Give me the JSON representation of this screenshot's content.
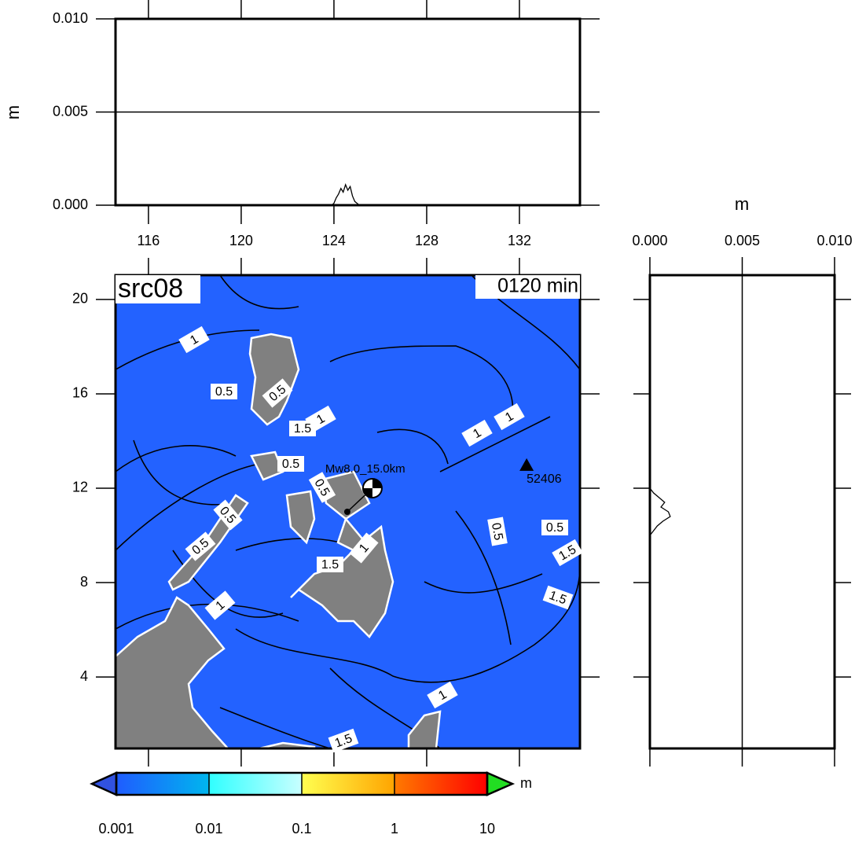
{
  "chart_data": [
    {
      "type": "line",
      "ylabel": "m",
      "xlim": [
        114.58,
        134.61
      ],
      "xticks": [
        116,
        120,
        124,
        128,
        132
      ],
      "ylim": [
        0,
        0.01
      ],
      "yticks": [
        {
          "value": 0,
          "label": "0.000"
        },
        {
          "value": 0.005,
          "label": "0.005"
        },
        {
          "value": 0.01,
          "label": "0.010"
        }
      ],
      "grid": true,
      "series": [
        {
          "color": "#000000",
          "x": [
            123.9,
            124.0,
            124.1,
            124.2,
            124.3,
            124.4,
            124.5,
            124.6,
            124.7,
            124.8,
            124.9,
            125.0,
            125.1
          ],
          "values": [
            0,
            0.0001,
            0.0004,
            0.0006,
            0.0009,
            0.0007,
            0.0011,
            0.0008,
            0.001,
            0.0005,
            0.0002,
            0.0001,
            0
          ]
        }
      ]
    },
    {
      "type": "map",
      "title": "src08",
      "subtitle": "0120 min",
      "xlim": [
        114.58,
        134.61
      ],
      "xticks": [
        116,
        120,
        124,
        128,
        132
      ],
      "ylim": [
        0.97,
        21.03
      ],
      "yticks": [
        4,
        8,
        12,
        16,
        20
      ],
      "sea_color": "#2362ff",
      "land_color": "#808080",
      "contour_labels": [
        "1",
        "0.5",
        "0.5",
        "1",
        "1.5",
        "0.5",
        "0.5",
        "1",
        "1",
        "0.5",
        "0.5",
        "1.5",
        "1.5",
        "0.5",
        "0.5",
        "1.5",
        "1",
        "1",
        "1",
        "1.5"
      ],
      "epicenter": {
        "label": "Mw8.0_15.0km",
        "lon": 125.66,
        "lat": 12.0
      },
      "station": {
        "label": "52406",
        "lon": 132.31,
        "lat": 12.97
      }
    },
    {
      "type": "line",
      "orientation": "horizontal",
      "xlabel": "m",
      "xlim": [
        0,
        0.01
      ],
      "xticks": [
        {
          "value": 0,
          "label": "0.000"
        },
        {
          "value": 0.005,
          "label": "0.005"
        },
        {
          "value": 0.01,
          "label": "0.010"
        }
      ],
      "ylim": [
        0.97,
        21.03
      ],
      "yticks": [
        4,
        8,
        12,
        16,
        20
      ],
      "grid": true,
      "series": [
        {
          "color": "#000000",
          "y": [
            12.0,
            11.8,
            11.6,
            11.4,
            11.2,
            11.0,
            10.8,
            10.6,
            10.4,
            10.2,
            10.0
          ],
          "values": [
            0,
            0.0002,
            0.0005,
            0.0008,
            0.0006,
            0.001,
            0.0011,
            0.0007,
            0.0004,
            0.0002,
            0
          ]
        }
      ]
    },
    {
      "type": "colorbar",
      "unit": "m",
      "scale": "log",
      "lim": [
        0.001,
        10
      ],
      "ticks": [
        0.001,
        0.01,
        0.1,
        1,
        10
      ],
      "segment_colors": [
        [
          "#1f5cff",
          "#00b6ee"
        ],
        [
          "#30ffff",
          "#c8ffff"
        ],
        [
          "#ffff50",
          "#ffa400"
        ],
        [
          "#ff7a00",
          "#ff0000"
        ]
      ],
      "under_color": "#3152e0",
      "over_color": "#22dd22"
    }
  ]
}
